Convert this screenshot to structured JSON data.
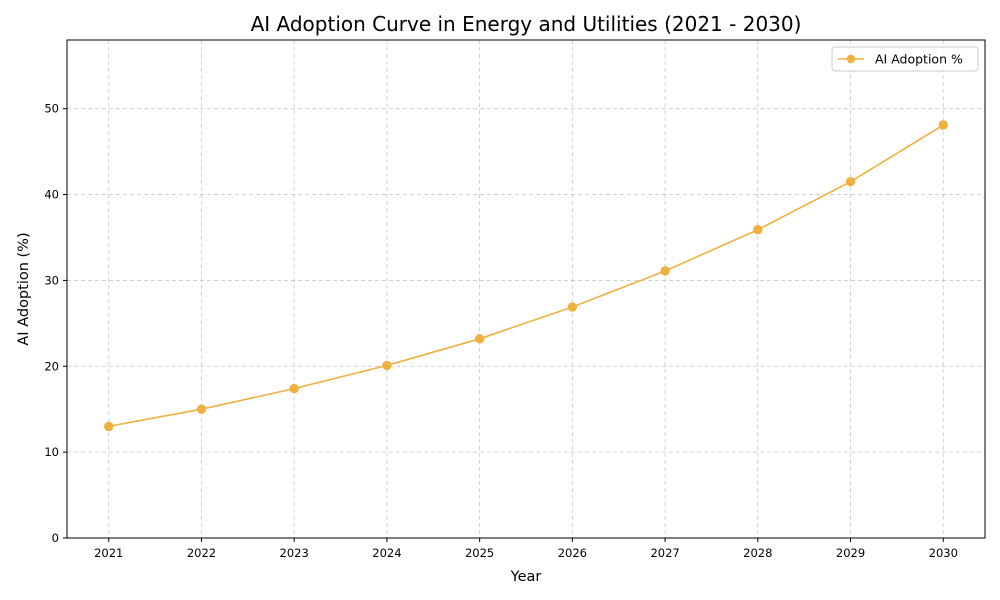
{
  "chart_data": {
    "type": "line",
    "title": "AI Adoption Curve in Energy and Utilities (2021 - 2030)",
    "xlabel": "Year",
    "ylabel": "AI Adoption (%)",
    "x": [
      2021,
      2022,
      2023,
      2024,
      2025,
      2026,
      2027,
      2028,
      2029,
      2030
    ],
    "x_tick_labels": [
      "2021",
      "2022",
      "2023",
      "2024",
      "2025",
      "2026",
      "2027",
      "2028",
      "2029",
      "2030"
    ],
    "y_ticks": [
      0,
      10,
      20,
      30,
      40,
      50
    ],
    "y_tick_labels": [
      "0",
      "10",
      "20",
      "30",
      "40",
      "50"
    ],
    "ylim": [
      0,
      58
    ],
    "grid": true,
    "grid_style": "dashed",
    "legend_position": "top-right",
    "series": [
      {
        "name": "AI Adoption %",
        "color": "#f0b040",
        "marker": "circle",
        "values": [
          13.0,
          15.0,
          17.4,
          20.1,
          23.2,
          26.9,
          31.1,
          35.9,
          41.5,
          48.1
        ]
      }
    ]
  }
}
